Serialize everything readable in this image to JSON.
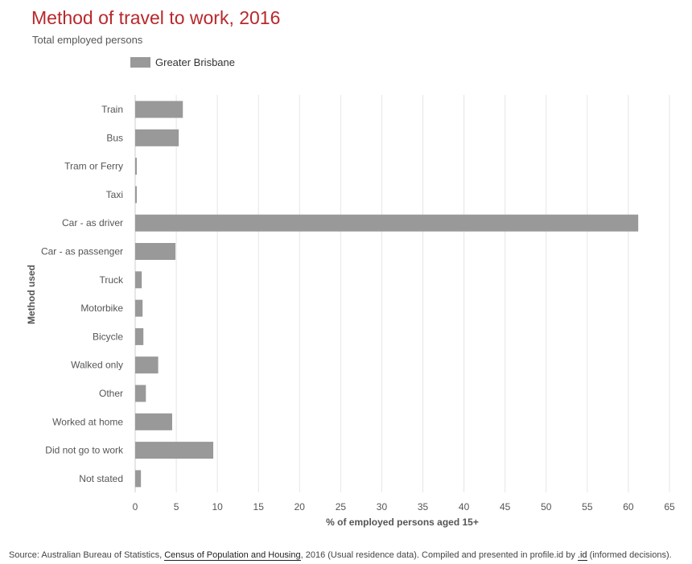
{
  "chart_data": {
    "type": "bar",
    "orientation": "horizontal",
    "title": "Method of travel to work, 2016",
    "subtitle": "Total employed persons",
    "xlabel": "% of employed persons aged 15+",
    "ylabel": "Method used",
    "xlim": [
      0,
      65
    ],
    "xticks": [
      0,
      5,
      10,
      15,
      20,
      25,
      30,
      35,
      40,
      45,
      50,
      55,
      60,
      65
    ],
    "grid": true,
    "legend_position": "top-left",
    "categories": [
      "Train",
      "Bus",
      "Tram or Ferry",
      "Taxi",
      "Car - as driver",
      "Car - as passenger",
      "Truck",
      "Motorbike",
      "Bicycle",
      "Walked only",
      "Other",
      "Worked at home",
      "Did not go to work",
      "Not stated"
    ],
    "series": [
      {
        "name": "Greater Brisbane",
        "color": "#999999",
        "values": [
          5.8,
          5.3,
          0.2,
          0.2,
          61.2,
          4.9,
          0.8,
          0.9,
          1.0,
          2.8,
          1.3,
          4.5,
          9.5,
          0.7
        ]
      }
    ]
  },
  "source": {
    "prefix": "Source: Australian Bureau of Statistics, ",
    "link1": "Census of Population and Housing",
    "middle": ", 2016 (Usual residence data). Compiled and presented in profile.id by ",
    "link2": ".id",
    "suffix": " (informed decisions)."
  }
}
